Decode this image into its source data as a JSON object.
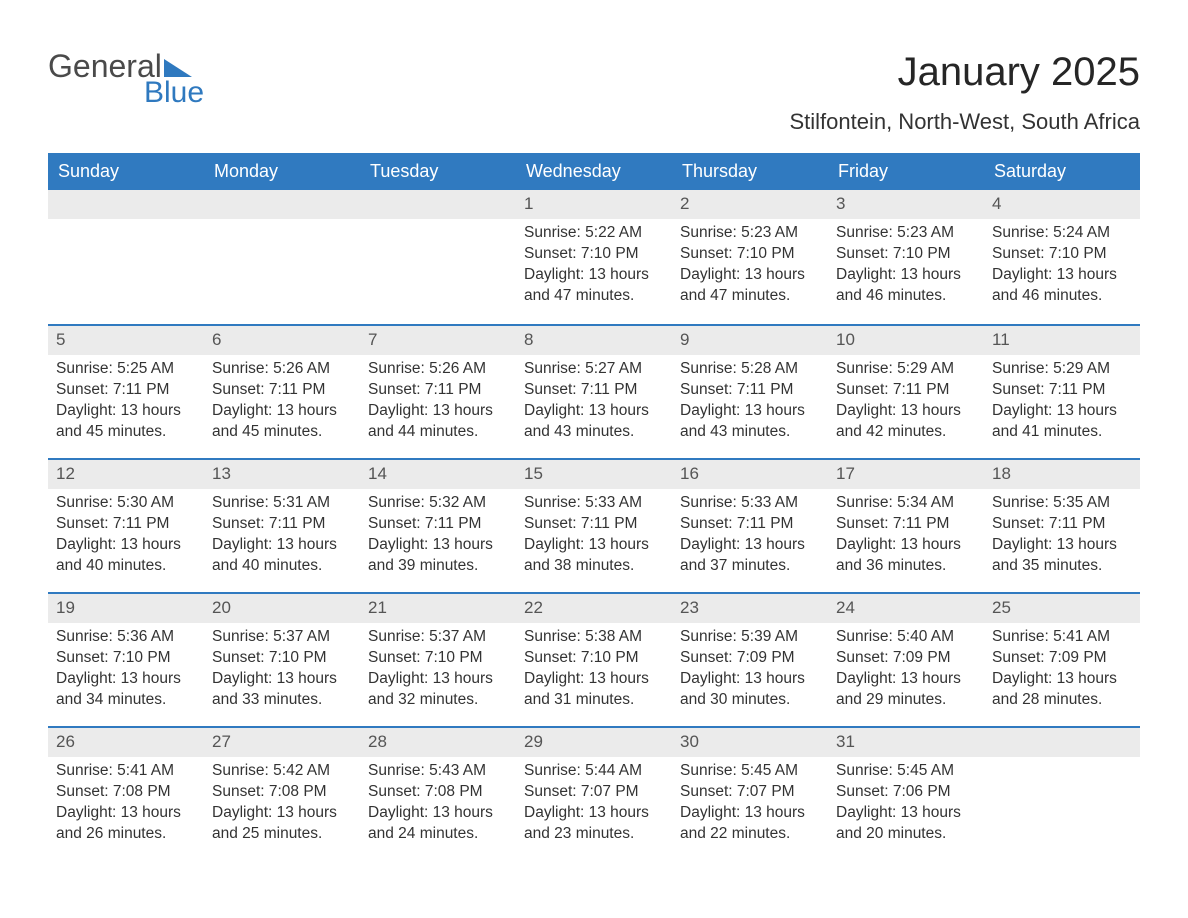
{
  "logo": {
    "word1": "General",
    "word2": "Blue"
  },
  "title": "January 2025",
  "subtitle": "Stilfontein, North-West, South Africa",
  "colors": {
    "brand_blue": "#307ac0",
    "header_bg": "#307ac0",
    "daynum_bg": "#ebebeb",
    "text": "#333333",
    "title": "#262626",
    "background": "#ffffff"
  },
  "typography": {
    "title_fontsize": 40,
    "subtitle_fontsize": 22,
    "dayhead_fontsize": 18,
    "body_fontsize": 15.5
  },
  "day_labels": [
    "Sunday",
    "Monday",
    "Tuesday",
    "Wednesday",
    "Thursday",
    "Friday",
    "Saturday"
  ],
  "field_labels": {
    "sunrise": "Sunrise",
    "sunset": "Sunset",
    "daylight": "Daylight"
  },
  "weeks": [
    [
      null,
      null,
      null,
      {
        "d": "1",
        "sunrise": "5:22 AM",
        "sunset": "7:10 PM",
        "daylight": "13 hours and 47 minutes."
      },
      {
        "d": "2",
        "sunrise": "5:23 AM",
        "sunset": "7:10 PM",
        "daylight": "13 hours and 47 minutes."
      },
      {
        "d": "3",
        "sunrise": "5:23 AM",
        "sunset": "7:10 PM",
        "daylight": "13 hours and 46 minutes."
      },
      {
        "d": "4",
        "sunrise": "5:24 AM",
        "sunset": "7:10 PM",
        "daylight": "13 hours and 46 minutes."
      }
    ],
    [
      {
        "d": "5",
        "sunrise": "5:25 AM",
        "sunset": "7:11 PM",
        "daylight": "13 hours and 45 minutes."
      },
      {
        "d": "6",
        "sunrise": "5:26 AM",
        "sunset": "7:11 PM",
        "daylight": "13 hours and 45 minutes."
      },
      {
        "d": "7",
        "sunrise": "5:26 AM",
        "sunset": "7:11 PM",
        "daylight": "13 hours and 44 minutes."
      },
      {
        "d": "8",
        "sunrise": "5:27 AM",
        "sunset": "7:11 PM",
        "daylight": "13 hours and 43 minutes."
      },
      {
        "d": "9",
        "sunrise": "5:28 AM",
        "sunset": "7:11 PM",
        "daylight": "13 hours and 43 minutes."
      },
      {
        "d": "10",
        "sunrise": "5:29 AM",
        "sunset": "7:11 PM",
        "daylight": "13 hours and 42 minutes."
      },
      {
        "d": "11",
        "sunrise": "5:29 AM",
        "sunset": "7:11 PM",
        "daylight": "13 hours and 41 minutes."
      }
    ],
    [
      {
        "d": "12",
        "sunrise": "5:30 AM",
        "sunset": "7:11 PM",
        "daylight": "13 hours and 40 minutes."
      },
      {
        "d": "13",
        "sunrise": "5:31 AM",
        "sunset": "7:11 PM",
        "daylight": "13 hours and 40 minutes."
      },
      {
        "d": "14",
        "sunrise": "5:32 AM",
        "sunset": "7:11 PM",
        "daylight": "13 hours and 39 minutes."
      },
      {
        "d": "15",
        "sunrise": "5:33 AM",
        "sunset": "7:11 PM",
        "daylight": "13 hours and 38 minutes."
      },
      {
        "d": "16",
        "sunrise": "5:33 AM",
        "sunset": "7:11 PM",
        "daylight": "13 hours and 37 minutes."
      },
      {
        "d": "17",
        "sunrise": "5:34 AM",
        "sunset": "7:11 PM",
        "daylight": "13 hours and 36 minutes."
      },
      {
        "d": "18",
        "sunrise": "5:35 AM",
        "sunset": "7:11 PM",
        "daylight": "13 hours and 35 minutes."
      }
    ],
    [
      {
        "d": "19",
        "sunrise": "5:36 AM",
        "sunset": "7:10 PM",
        "daylight": "13 hours and 34 minutes."
      },
      {
        "d": "20",
        "sunrise": "5:37 AM",
        "sunset": "7:10 PM",
        "daylight": "13 hours and 33 minutes."
      },
      {
        "d": "21",
        "sunrise": "5:37 AM",
        "sunset": "7:10 PM",
        "daylight": "13 hours and 32 minutes."
      },
      {
        "d": "22",
        "sunrise": "5:38 AM",
        "sunset": "7:10 PM",
        "daylight": "13 hours and 31 minutes."
      },
      {
        "d": "23",
        "sunrise": "5:39 AM",
        "sunset": "7:09 PM",
        "daylight": "13 hours and 30 minutes."
      },
      {
        "d": "24",
        "sunrise": "5:40 AM",
        "sunset": "7:09 PM",
        "daylight": "13 hours and 29 minutes."
      },
      {
        "d": "25",
        "sunrise": "5:41 AM",
        "sunset": "7:09 PM",
        "daylight": "13 hours and 28 minutes."
      }
    ],
    [
      {
        "d": "26",
        "sunrise": "5:41 AM",
        "sunset": "7:08 PM",
        "daylight": "13 hours and 26 minutes."
      },
      {
        "d": "27",
        "sunrise": "5:42 AM",
        "sunset": "7:08 PM",
        "daylight": "13 hours and 25 minutes."
      },
      {
        "d": "28",
        "sunrise": "5:43 AM",
        "sunset": "7:08 PM",
        "daylight": "13 hours and 24 minutes."
      },
      {
        "d": "29",
        "sunrise": "5:44 AM",
        "sunset": "7:07 PM",
        "daylight": "13 hours and 23 minutes."
      },
      {
        "d": "30",
        "sunrise": "5:45 AM",
        "sunset": "7:07 PM",
        "daylight": "13 hours and 22 minutes."
      },
      {
        "d": "31",
        "sunrise": "5:45 AM",
        "sunset": "7:06 PM",
        "daylight": "13 hours and 20 minutes."
      },
      null
    ]
  ]
}
